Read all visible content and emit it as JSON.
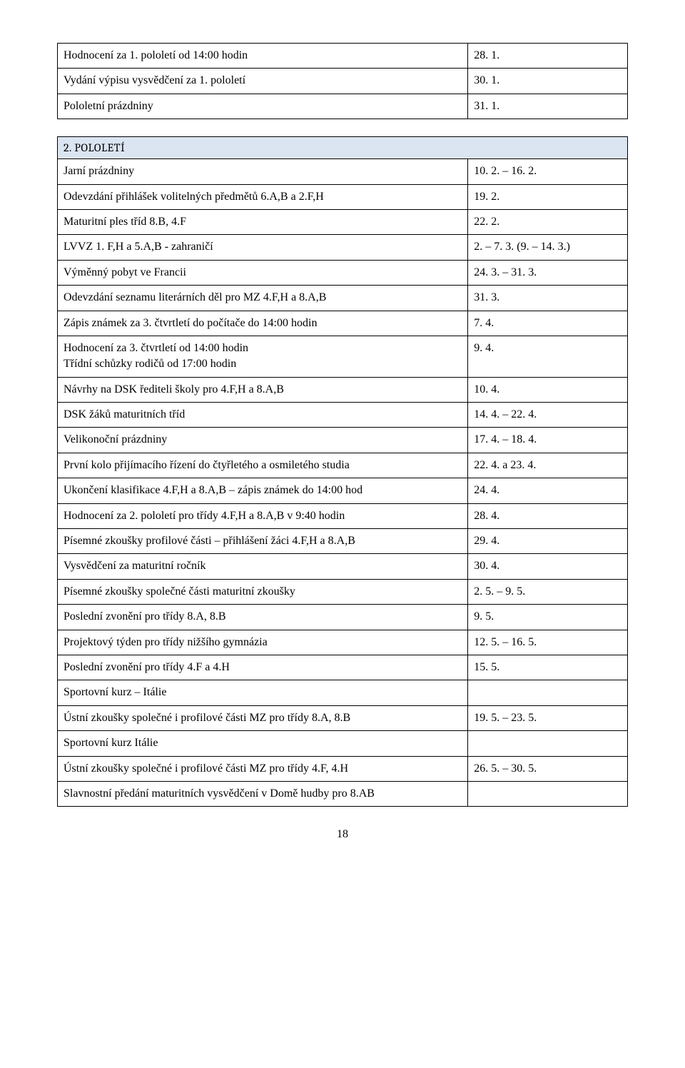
{
  "table1": {
    "rows": [
      {
        "label": "Hodnocení za 1. pololetí od 14:00 hodin",
        "value": "28. 1."
      },
      {
        "label": "Vydání výpisu vysvědčení za 1. pololetí",
        "value": "30. 1."
      },
      {
        "label": "Pololetní prázdniny",
        "value": "31. 1."
      }
    ]
  },
  "section_header": "2. POLOLETÍ",
  "table2": {
    "rows": [
      {
        "label": "Jarní prázdniny",
        "value": "10. 2. – 16. 2."
      },
      {
        "label": "Odevzdání přihlášek volitelných předmětů 6.A,B a 2.F,H",
        "value": "19. 2."
      },
      {
        "label": "Maturitní ples tříd 8.B, 4.F",
        "value": "22. 2."
      },
      {
        "label": "LVVZ 1. F,H a 5.A,B - zahraničí",
        "value": "2. – 7. 3. (9. – 14. 3.)"
      },
      {
        "label": "Výměnný pobyt ve Francii",
        "value": "24. 3. – 31. 3."
      },
      {
        "label": "Odevzdání seznamu literárních děl pro MZ 4.F,H a 8.A,B",
        "value": "31. 3."
      },
      {
        "label": "Zápis známek za 3. čtvrtletí do počítače do 14:00 hodin",
        "value": "7. 4."
      },
      {
        "label": "Hodnocení za 3. čtvrtletí od 14:00 hodin\nTřídní schůzky rodičů od 17:00 hodin",
        "value": "9. 4."
      },
      {
        "label": "Návrhy na DSK řediteli školy pro 4.F,H a 8.A,B",
        "value": "10. 4."
      },
      {
        "label": "DSK žáků maturitních tříd",
        "value": "14. 4. – 22. 4."
      },
      {
        "label": "Velikonoční prázdniny",
        "value": "17. 4. – 18. 4."
      },
      {
        "label": "První kolo přijímacího řízení do čtyřletého a osmiletého studia",
        "value": "22. 4. a 23. 4."
      },
      {
        "label": "Ukončení klasifikace 4.F,H a 8.A,B – zápis známek do 14:00 hod",
        "value": "24. 4."
      },
      {
        "label": "Hodnocení za 2. pololetí pro třídy 4.F,H a 8.A,B v 9:40 hodin",
        "value": "28. 4."
      },
      {
        "label": "Písemné zkoušky profilové části – přihlášení žáci 4.F,H a 8.A,B",
        "value": "29. 4."
      },
      {
        "label": "Vysvědčení za maturitní ročník",
        "value": "30. 4."
      },
      {
        "label": "Písemné zkoušky společné části maturitní zkoušky",
        "value": "2. 5. – 9. 5."
      },
      {
        "label": "Poslední zvonění pro třídy 8.A, 8.B",
        "value": "9. 5."
      },
      {
        "label": "Projektový týden pro třídy nižšího gymnázia",
        "value": "12. 5. – 16. 5."
      },
      {
        "label": "Poslední zvonění pro třídy 4.F a 4.H",
        "value": "15. 5."
      },
      {
        "label": "Sportovní kurz – Itálie",
        "value": ""
      },
      {
        "label": "Ústní zkoušky společné i profilové části MZ pro třídy 8.A, 8.B",
        "value": "19. 5. – 23. 5."
      },
      {
        "label": "Sportovní kurz Itálie",
        "value": ""
      },
      {
        "label": "Ústní zkoušky společné i profilové části MZ pro třídy 4.F, 4.H",
        "value": "26. 5. – 30. 5."
      },
      {
        "label": "Slavnostní předání maturitních vysvědčení v Domě hudby pro 8.AB",
        "value": ""
      }
    ]
  },
  "page_number": "18"
}
